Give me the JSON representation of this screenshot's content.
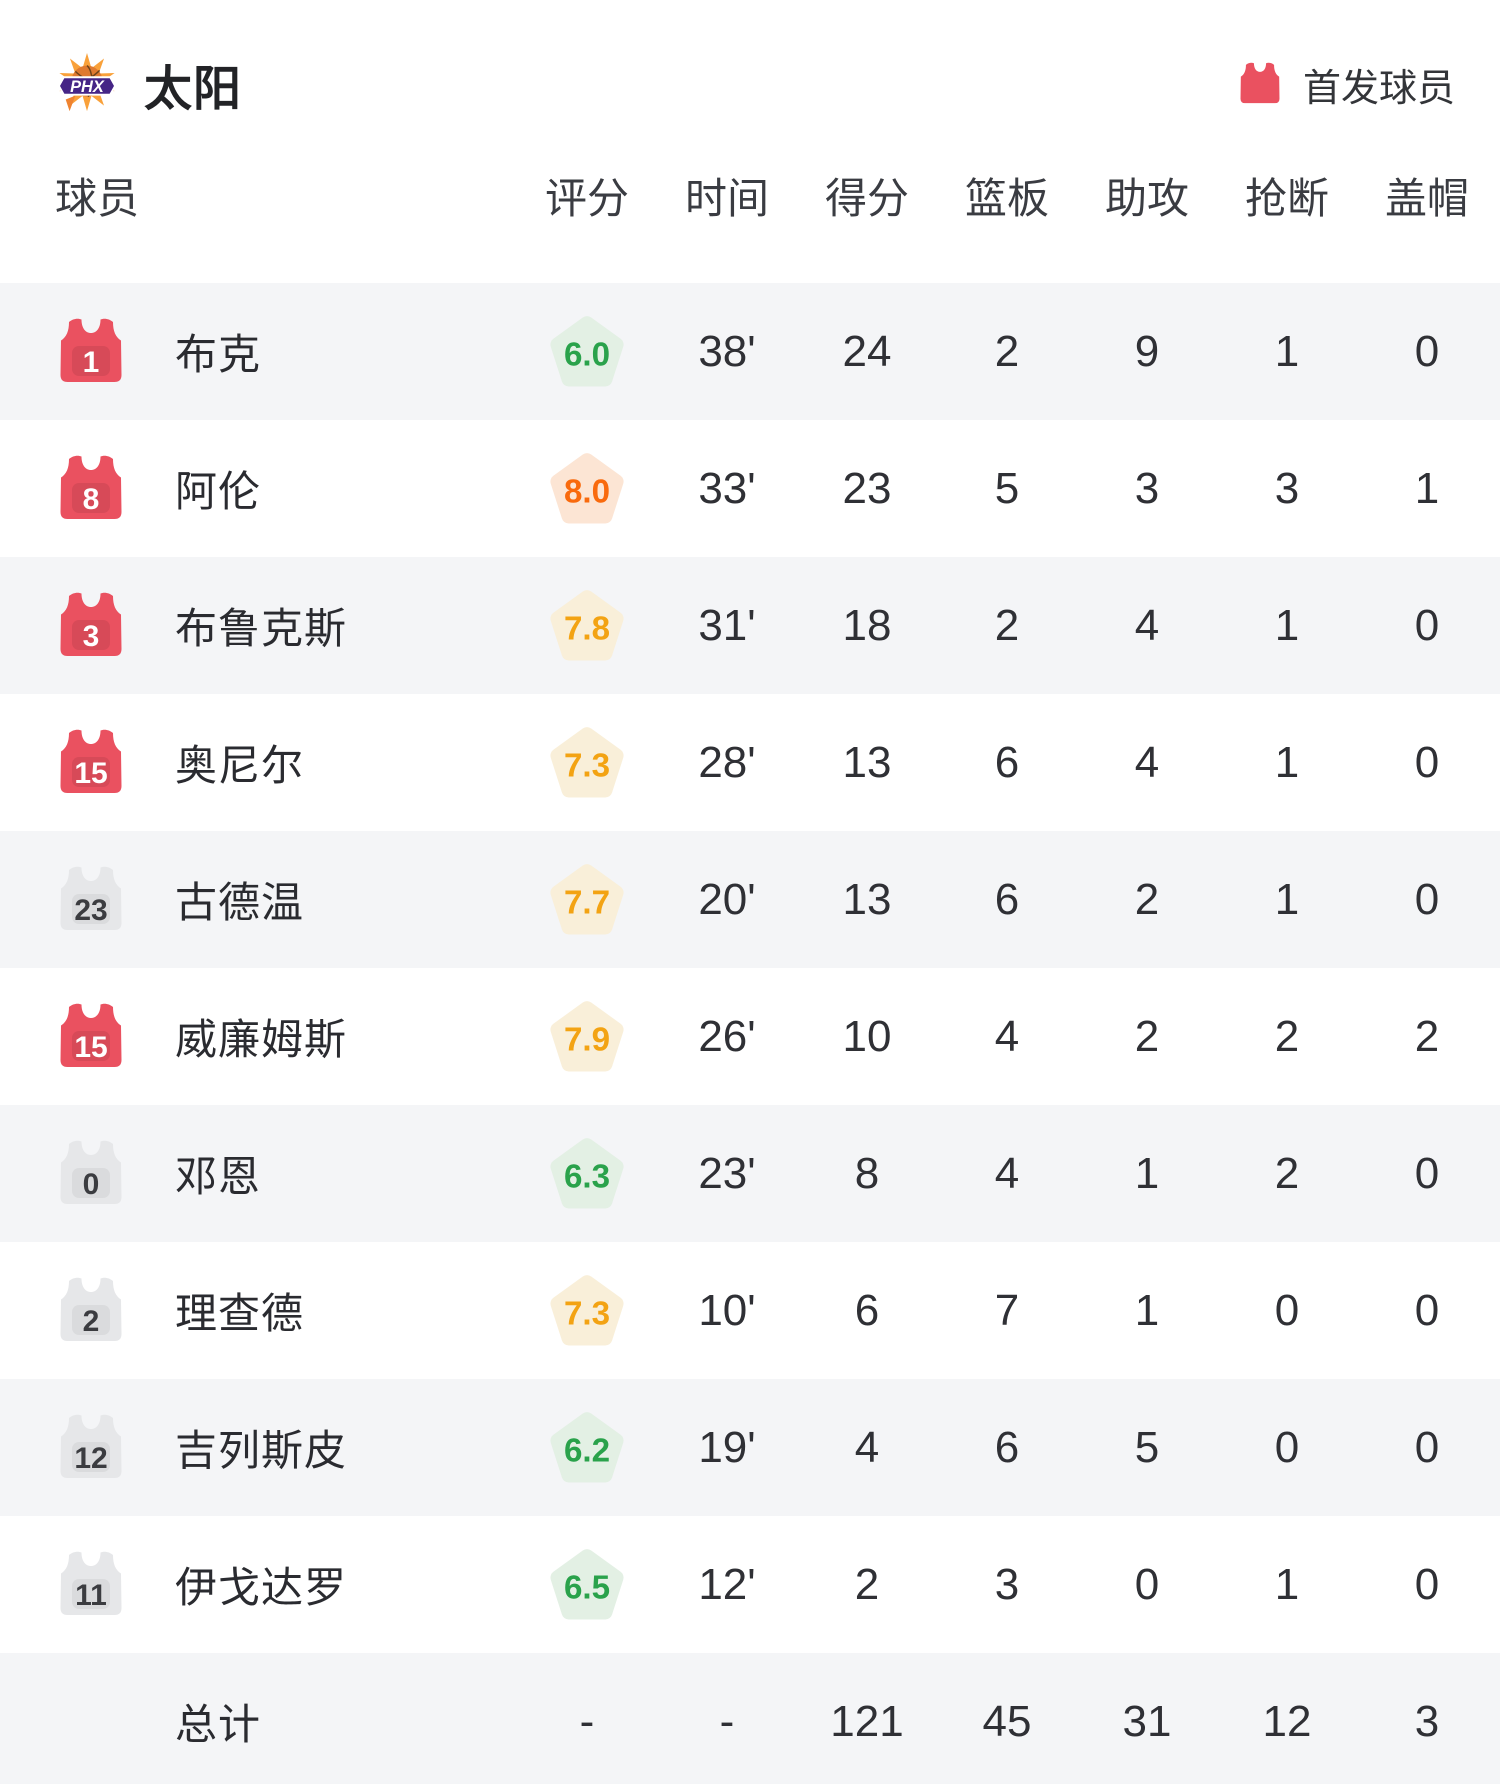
{
  "header": {
    "team_name": "太阳",
    "team_logo": "phx-suns-logo",
    "legend_label": "首发球员"
  },
  "colors": {
    "starter_jersey_red": "#EA5160",
    "bench_jersey_gray": "#E6E7E9",
    "row_alt_gray": "#F4F5F7",
    "rating_green_text": "#2AA24B",
    "rating_green_bg": "#E3F0E4",
    "rating_amber_text": "#F3A313",
    "rating_amber_bg": "#F9EFD9",
    "rating_orange_text": "#F96A0D",
    "rating_orange_bg": "#FCE5D4"
  },
  "table": {
    "columns": [
      "球员",
      "评分",
      "时间",
      "得分",
      "篮板",
      "助攻",
      "抢断",
      "盖帽"
    ],
    "players": [
      {
        "name": "布克",
        "number": "1",
        "starter": true,
        "rating": "6.0",
        "level": "green",
        "time": "38'",
        "pts": "24",
        "reb": "2",
        "ast": "9",
        "stl": "1",
        "blk": "0"
      },
      {
        "name": "阿伦",
        "number": "8",
        "starter": true,
        "rating": "8.0",
        "level": "orange",
        "time": "33'",
        "pts": "23",
        "reb": "5",
        "ast": "3",
        "stl": "3",
        "blk": "1"
      },
      {
        "name": "布鲁克斯",
        "number": "3",
        "starter": true,
        "rating": "7.8",
        "level": "amber",
        "time": "31'",
        "pts": "18",
        "reb": "2",
        "ast": "4",
        "stl": "1",
        "blk": "0"
      },
      {
        "name": "奥尼尔",
        "number": "15",
        "starter": true,
        "rating": "7.3",
        "level": "amber",
        "time": "28'",
        "pts": "13",
        "reb": "6",
        "ast": "4",
        "stl": "1",
        "blk": "0"
      },
      {
        "name": "古德温",
        "number": "23",
        "starter": false,
        "rating": "7.7",
        "level": "amber",
        "time": "20'",
        "pts": "13",
        "reb": "6",
        "ast": "2",
        "stl": "1",
        "blk": "0"
      },
      {
        "name": "威廉姆斯",
        "number": "15",
        "starter": true,
        "rating": "7.9",
        "level": "amber",
        "time": "26'",
        "pts": "10",
        "reb": "4",
        "ast": "2",
        "stl": "2",
        "blk": "2"
      },
      {
        "name": "邓恩",
        "number": "0",
        "starter": false,
        "rating": "6.3",
        "level": "green",
        "time": "23'",
        "pts": "8",
        "reb": "4",
        "ast": "1",
        "stl": "2",
        "blk": "0"
      },
      {
        "name": "理查德",
        "number": "2",
        "starter": false,
        "rating": "7.3",
        "level": "amber",
        "time": "10'",
        "pts": "6",
        "reb": "7",
        "ast": "1",
        "stl": "0",
        "blk": "0"
      },
      {
        "name": "吉列斯皮",
        "number": "12",
        "starter": false,
        "rating": "6.2",
        "level": "green",
        "time": "19'",
        "pts": "4",
        "reb": "6",
        "ast": "5",
        "stl": "0",
        "blk": "0"
      },
      {
        "name": "伊戈达罗",
        "number": "11",
        "starter": false,
        "rating": "6.5",
        "level": "green",
        "time": "12'",
        "pts": "2",
        "reb": "3",
        "ast": "0",
        "stl": "1",
        "blk": "0"
      }
    ],
    "total": {
      "label": "总计",
      "rating": "-",
      "time": "-",
      "pts": "121",
      "reb": "45",
      "ast": "31",
      "stl": "12",
      "blk": "3"
    }
  }
}
